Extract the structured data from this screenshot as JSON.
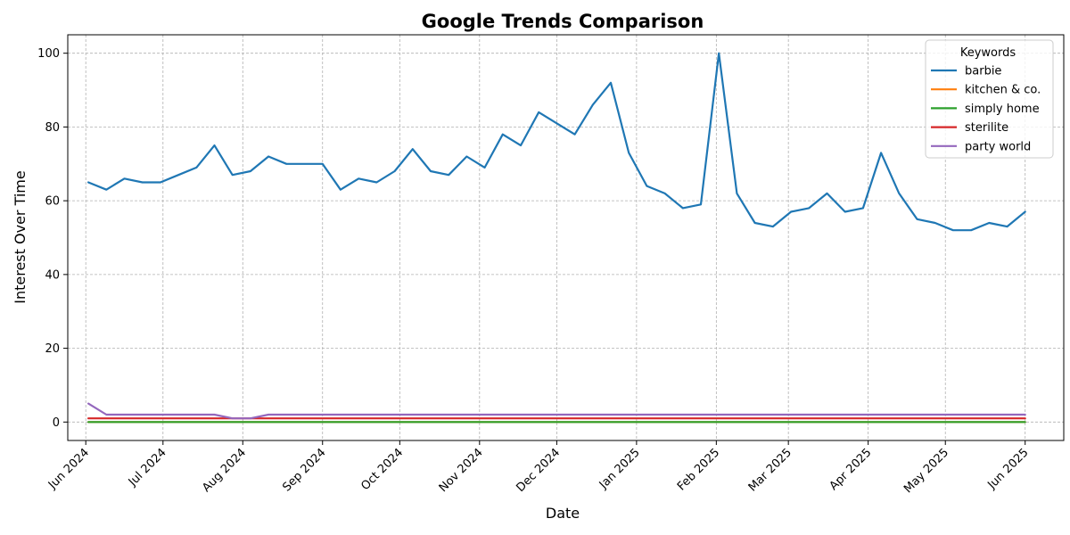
{
  "chart_data": {
    "type": "line",
    "title": "Google Trends Comparison",
    "xlabel": "Date",
    "ylabel": "Interest Over Time",
    "ylim": [
      -5,
      105
    ],
    "yticks": [
      0,
      20,
      40,
      60,
      80,
      100
    ],
    "xlim": [
      "2024-05-25",
      "2025-06-16"
    ],
    "xticks": [
      {
        "date": "2024-06-01",
        "label": "Jun 2024"
      },
      {
        "date": "2024-07-01",
        "label": "Jul 2024"
      },
      {
        "date": "2024-08-01",
        "label": "Aug 2024"
      },
      {
        "date": "2024-09-01",
        "label": "Sep 2024"
      },
      {
        "date": "2024-10-01",
        "label": "Oct 2024"
      },
      {
        "date": "2024-11-01",
        "label": "Nov 2024"
      },
      {
        "date": "2024-12-01",
        "label": "Dec 2024"
      },
      {
        "date": "2025-01-01",
        "label": "Jan 2025"
      },
      {
        "date": "2025-02-01",
        "label": "Feb 2025"
      },
      {
        "date": "2025-03-01",
        "label": "Mar 2025"
      },
      {
        "date": "2025-04-01",
        "label": "Apr 2025"
      },
      {
        "date": "2025-05-01",
        "label": "May 2025"
      },
      {
        "date": "2025-06-01",
        "label": "Jun 2025"
      }
    ],
    "grid": true,
    "legend_title": "Keywords",
    "legend_position": "top-right",
    "x": [
      "2024-06-02",
      "2024-06-09",
      "2024-06-16",
      "2024-06-23",
      "2024-06-30",
      "2024-07-07",
      "2024-07-14",
      "2024-07-21",
      "2024-07-28",
      "2024-08-04",
      "2024-08-11",
      "2024-08-18",
      "2024-08-25",
      "2024-09-01",
      "2024-09-08",
      "2024-09-15",
      "2024-09-22",
      "2024-09-29",
      "2024-10-06",
      "2024-10-13",
      "2024-10-20",
      "2024-10-27",
      "2024-11-03",
      "2024-11-10",
      "2024-11-17",
      "2024-11-24",
      "2024-12-01",
      "2024-12-08",
      "2024-12-15",
      "2024-12-22",
      "2024-12-29",
      "2025-01-05",
      "2025-01-12",
      "2025-01-19",
      "2025-01-26",
      "2025-02-02",
      "2025-02-09",
      "2025-02-16",
      "2025-02-23",
      "2025-03-02",
      "2025-03-09",
      "2025-03-16",
      "2025-03-23",
      "2025-03-30",
      "2025-04-06",
      "2025-04-13",
      "2025-04-20",
      "2025-04-27",
      "2025-05-04",
      "2025-05-11",
      "2025-05-18",
      "2025-05-25",
      "2025-06-01"
    ],
    "series": [
      {
        "name": "barbie",
        "color": "#1f77b4",
        "values": [
          65,
          63,
          66,
          65,
          65,
          67,
          69,
          75,
          67,
          68,
          72,
          70,
          70,
          70,
          63,
          66,
          65,
          68,
          74,
          68,
          67,
          72,
          69,
          78,
          75,
          84,
          81,
          78,
          86,
          92,
          73,
          64,
          62,
          58,
          59,
          100,
          62,
          54,
          53,
          57,
          58,
          62,
          57,
          58,
          73,
          62,
          55,
          54,
          52,
          52,
          54,
          53,
          57
        ]
      },
      {
        "name": "kitchen & co.",
        "color": "#ff7f0e",
        "values": [
          0,
          0,
          0,
          0,
          0,
          0,
          0,
          0,
          0,
          0,
          0,
          0,
          0,
          0,
          0,
          0,
          0,
          0,
          0,
          0,
          0,
          0,
          0,
          0,
          0,
          0,
          0,
          0,
          0,
          0,
          0,
          0,
          0,
          0,
          0,
          0,
          0,
          0,
          0,
          0,
          0,
          0,
          0,
          0,
          0,
          0,
          0,
          0,
          0,
          0,
          0,
          0,
          0
        ]
      },
      {
        "name": "simply home",
        "color": "#2ca02c",
        "values": [
          0,
          0,
          0,
          0,
          0,
          0,
          0,
          0,
          0,
          0,
          0,
          0,
          0,
          0,
          0,
          0,
          0,
          0,
          0,
          0,
          0,
          0,
          0,
          0,
          0,
          0,
          0,
          0,
          0,
          0,
          0,
          0,
          0,
          0,
          0,
          0,
          0,
          0,
          0,
          0,
          0,
          0,
          0,
          0,
          0,
          0,
          0,
          0,
          0,
          0,
          0,
          0,
          0
        ]
      },
      {
        "name": "sterilite",
        "color": "#d62728",
        "values": [
          1,
          1,
          1,
          1,
          1,
          1,
          1,
          1,
          1,
          1,
          1,
          1,
          1,
          1,
          1,
          1,
          1,
          1,
          1,
          1,
          1,
          1,
          1,
          1,
          1,
          1,
          1,
          1,
          1,
          1,
          1,
          1,
          1,
          1,
          1,
          1,
          1,
          1,
          1,
          1,
          1,
          1,
          1,
          1,
          1,
          1,
          1,
          1,
          1,
          1,
          1,
          1,
          1
        ]
      },
      {
        "name": "party world",
        "color": "#9467bd",
        "values": [
          5,
          2,
          2,
          2,
          2,
          2,
          2,
          2,
          1,
          1,
          2,
          2,
          2,
          2,
          2,
          2,
          2,
          2,
          2,
          2,
          2,
          2,
          2,
          2,
          2,
          2,
          2,
          2,
          2,
          2,
          2,
          2,
          2,
          2,
          2,
          2,
          2,
          2,
          2,
          2,
          2,
          2,
          2,
          2,
          2,
          2,
          2,
          2,
          2,
          2,
          2,
          2,
          2
        ]
      }
    ]
  }
}
